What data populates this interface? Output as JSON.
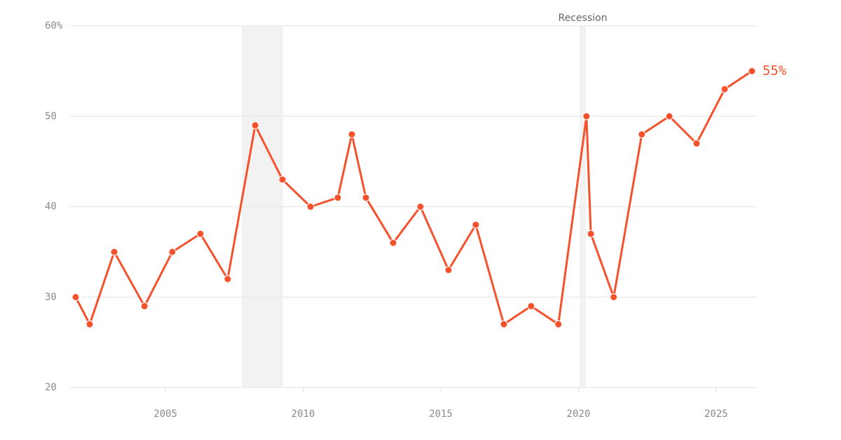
{
  "chart_data": {
    "type": "line",
    "x": [
      2001.74,
      2002.25,
      2003.14,
      2004.24,
      2005.25,
      2006.27,
      2007.26,
      2008.26,
      2009.25,
      2010.27,
      2011.26,
      2011.77,
      2012.28,
      2013.27,
      2014.26,
      2015.28,
      2016.27,
      2017.29,
      2018.28,
      2019.27,
      2020.29,
      2020.45,
      2021.28,
      2022.3,
      2023.3,
      2024.29,
      2025.31,
      2026.3
    ],
    "series": [
      {
        "color": "#f4512c",
        "values": [
          30,
          27,
          35,
          29,
          35,
          37,
          32,
          49,
          43,
          40,
          41,
          48,
          41,
          36,
          40,
          33,
          38,
          27,
          29,
          27,
          50,
          37,
          30,
          48,
          50,
          47,
          53,
          55
        ],
        "value_labels": [
          null,
          null,
          null,
          null,
          null,
          null,
          null,
          null,
          null,
          null,
          null,
          null,
          null,
          null,
          null,
          null,
          null,
          null,
          null,
          null,
          null,
          null,
          null,
          null,
          null,
          null,
          null,
          "55%"
        ]
      }
    ],
    "xlim": [
      2001.41,
      2026.48
    ],
    "xticks": [
      2005,
      2010,
      2015,
      2020,
      2025
    ],
    "ylim": [
      20,
      60
    ],
    "yticks": [
      20,
      30,
      40,
      50,
      {
        "value": 60,
        "label": "60%"
      }
    ],
    "grid": true,
    "shaded_ranges": [
      [
        2007.77,
        2009.27
      ],
      [
        2020.04,
        2020.27
      ]
    ],
    "shaded_label": "Recession"
  }
}
